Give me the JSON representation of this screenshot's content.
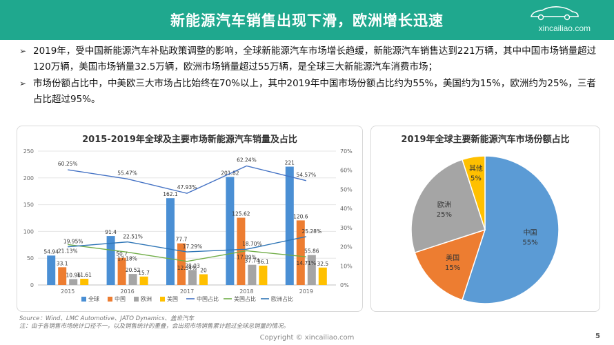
{
  "header": {
    "title": "新能源汽车销售出现下滑，欧洲增长迅速",
    "brand": "xincailiao.com",
    "color": "#1fa88e"
  },
  "bullets": [
    "2019年，受中国新能源汽车补贴政策调整的影响，全球新能源汽车市场增长趋缓，新能源汽车销售达到221万辆，其中中国市场销量超过120万辆，美国市场销量32.5万辆，欧洲市场销量超过55万辆，是全球三大新能源汽车消费市场；",
    "市场份额占比中，中美欧三大市场占比始终在70%以上，其中2019年中国市场份额占比约为55%，美国约为15%，欧洲约为25%，三者占比超过95%。"
  ],
  "bullet_mark": "➢",
  "chart_data": [
    {
      "type": "bar",
      "title": "2015-2019年全球及主要市场新能源汽车销量及占比",
      "categories": [
        "2015",
        "2016",
        "2017",
        "2018",
        "2019"
      ],
      "ylim": [
        0,
        250
      ],
      "y_ticks": [
        "0",
        "50",
        "100",
        "150",
        "200",
        "250"
      ],
      "y2lim": [
        0,
        70
      ],
      "y2_ticks": [
        "0%",
        "10%",
        "20%",
        "30%",
        "40%",
        "50%",
        "60%",
        "70%"
      ],
      "series": [
        {
          "name": "全球",
          "kind": "bar",
          "color": "#4a8fd4",
          "values": [
            54.94,
            91.4,
            162.1,
            201.82,
            221
          ],
          "labels": [
            "54.94",
            "91.4",
            "162.1",
            "201.82",
            "221"
          ]
        },
        {
          "name": "中国",
          "kind": "bar",
          "color": "#ed7d31",
          "values": [
            33.1,
            50.7,
            77.7,
            125.62,
            120.6
          ],
          "labels": [
            "33.1",
            "50.7",
            "77.7",
            "125.62",
            "120.6"
          ]
        },
        {
          "name": "欧洲",
          "kind": "bar",
          "color": "#a5a5a5",
          "values": [
            10.96,
            20.52,
            28.03,
            37.74,
            55.86
          ],
          "labels": [
            "10.96",
            "20.52",
            "28.03",
            "37.74",
            "55.86"
          ]
        },
        {
          "name": "美国",
          "kind": "bar",
          "color": "#ffc000",
          "values": [
            11.61,
            15.7,
            20,
            36.1,
            32.5
          ],
          "labels": [
            "11.61",
            "15.7",
            "20",
            "36.1",
            "32.5"
          ]
        },
        {
          "name": "中国占比",
          "kind": "line",
          "color": "#4472c4",
          "values": [
            60.25,
            55.47,
            47.93,
            62.24,
            54.57
          ],
          "labels": [
            "60.25%",
            "55.47%",
            "47.93%",
            "62.24%",
            "54.57%"
          ]
        },
        {
          "name": "美国占比",
          "kind": "line",
          "color": "#70ad47",
          "values": [
            21.13,
            17.18,
            12.34,
            17.89,
            14.71
          ],
          "labels": [
            "21.13%",
            "17.18%",
            "12.34%",
            "17.89%",
            "14.71%"
          ]
        },
        {
          "name": "欧洲占比",
          "kind": "line",
          "color": "#2e75b6",
          "values": [
            19.95,
            22.51,
            17.29,
            18.7,
            25.28
          ],
          "labels": [
            "19.95%",
            "22.51%",
            "17.29%",
            "18.70%",
            "25.28%"
          ]
        }
      ],
      "legend": "bottom"
    },
    {
      "type": "pie",
      "title": "2019年全球主要新能源汽车市场份额占比",
      "slices": [
        {
          "name": "中国",
          "value": 55,
          "label": "55%",
          "color": "#5b9bd5"
        },
        {
          "name": "美国",
          "value": 15,
          "label": "15%",
          "color": "#ed7d31"
        },
        {
          "name": "欧洲",
          "value": 25,
          "label": "25%",
          "color": "#a5a5a5"
        },
        {
          "name": "其他",
          "value": 5,
          "label": "5%",
          "color": "#ffc000"
        }
      ]
    }
  ],
  "footnote": {
    "source": "Source：Wind、LMC Automotive、JATO Dynamics、盖世汽车",
    "note": "注：由于各销售市场统计口径不一，以及销售统计的重叠，会出现市场销售累计超过全球总销量的情况。"
  },
  "copyright": "Copyright © xincailiao.com",
  "page_number": "5"
}
